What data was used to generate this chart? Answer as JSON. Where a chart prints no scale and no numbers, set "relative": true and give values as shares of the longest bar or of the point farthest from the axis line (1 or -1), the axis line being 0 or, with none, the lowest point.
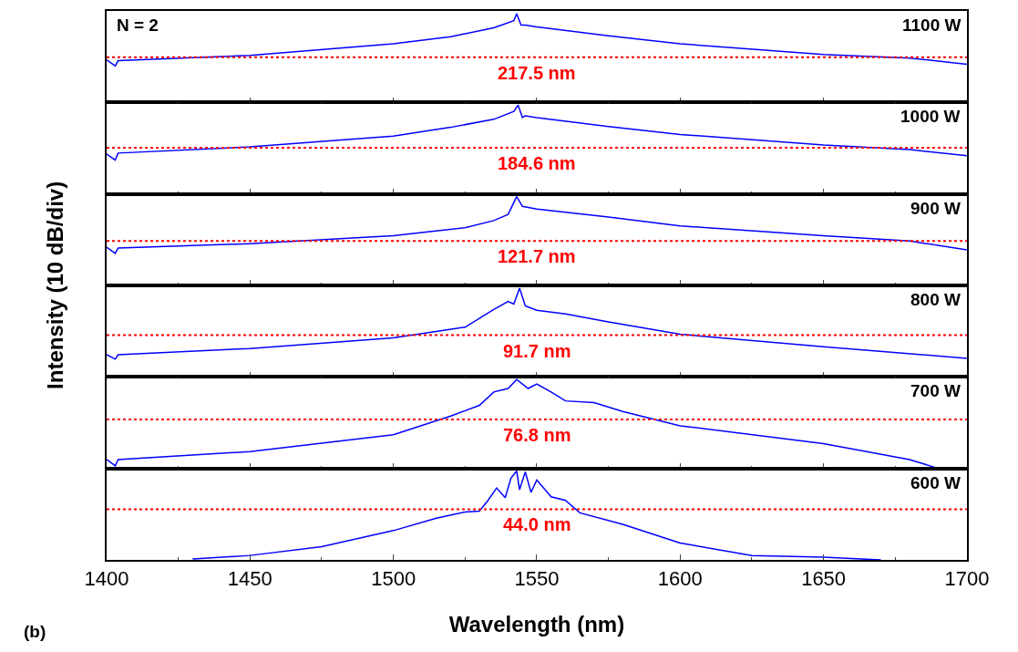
{
  "chart_data": [
    {
      "type": "line",
      "relative": true,
      "ylabel": "Intensity (10 dB/div)",
      "annotations": [
        "1100 W",
        "N = 2"
      ],
      "tick_labels": false,
      "xlim": [
        1400,
        1700
      ],
      "xticks": [
        1400,
        1450,
        1500,
        1550,
        1600,
        1650,
        1700
      ],
      "x": [
        1400,
        1403,
        1404,
        1450,
        1500,
        1520,
        1535,
        1542,
        1543,
        1544.5,
        1546,
        1550,
        1575,
        1600,
        1650,
        1680,
        1700
      ],
      "series": [
        {
          "color": "#0000ff",
          "values": [
            0.48,
            0.41,
            0.47,
            0.53,
            0.66,
            0.74,
            0.84,
            0.92,
            1.0,
            0.87,
            0.87,
            0.85,
            0.75,
            0.66,
            0.54,
            0.5,
            0.43
          ]
        }
      ],
      "ref_lines": [
        {
          "axis": "y",
          "value": 0.51,
          "label": "217.5 nm",
          "color": "#ff0000",
          "line_style": "dotted"
        }
      ]
    },
    {
      "type": "line",
      "relative": true,
      "annotations": [
        "1000 W"
      ],
      "tick_labels": false,
      "xlim": [
        1400,
        1700
      ],
      "xticks": [
        1400,
        1450,
        1500,
        1550,
        1600,
        1650,
        1700
      ],
      "x": [
        1400,
        1403,
        1404,
        1450,
        1500,
        1520,
        1535,
        1542,
        1543.5,
        1545,
        1546,
        1550,
        1575,
        1600,
        1650,
        1680,
        1700
      ],
      "series": [
        {
          "color": "#0000ff",
          "values": [
            0.45,
            0.38,
            0.46,
            0.53,
            0.65,
            0.75,
            0.84,
            0.93,
            1.0,
            0.86,
            0.88,
            0.86,
            0.76,
            0.67,
            0.55,
            0.5,
            0.43
          ]
        }
      ],
      "ref_lines": [
        {
          "axis": "y",
          "value": 0.52,
          "label": "184.6 nm",
          "color": "#ff0000",
          "line_style": "dotted"
        }
      ]
    },
    {
      "type": "line",
      "relative": true,
      "annotations": [
        "900 W"
      ],
      "tick_labels": false,
      "xlim": [
        1400,
        1700
      ],
      "xticks": [
        1400,
        1450,
        1500,
        1550,
        1600,
        1650,
        1700
      ],
      "x": [
        1400,
        1403,
        1404,
        1450,
        1500,
        1525,
        1535,
        1540,
        1543,
        1545,
        1550,
        1575,
        1600,
        1650,
        1680,
        1700
      ],
      "series": [
        {
          "color": "#0000ff",
          "values": [
            0.43,
            0.36,
            0.42,
            0.47,
            0.56,
            0.65,
            0.73,
            0.8,
            1.0,
            0.89,
            0.86,
            0.77,
            0.67,
            0.56,
            0.5,
            0.4
          ]
        }
      ],
      "ref_lines": [
        {
          "axis": "y",
          "value": 0.5,
          "label": "121.7 nm",
          "color": "#ff0000",
          "line_style": "dotted"
        }
      ]
    },
    {
      "type": "line",
      "relative": true,
      "annotations": [
        "800 W"
      ],
      "tick_labels": false,
      "xlim": [
        1400,
        1700
      ],
      "xticks": [
        1400,
        1450,
        1500,
        1550,
        1600,
        1650,
        1700
      ],
      "x": [
        1400,
        1403,
        1404,
        1450,
        1500,
        1525,
        1535,
        1540,
        1542,
        1544,
        1546,
        1550,
        1560,
        1575,
        1600,
        1650,
        1700
      ],
      "series": [
        {
          "color": "#0000ff",
          "values": [
            0.25,
            0.2,
            0.25,
            0.32,
            0.44,
            0.56,
            0.76,
            0.85,
            0.82,
            1.0,
            0.8,
            0.75,
            0.71,
            0.62,
            0.48,
            0.34,
            0.21
          ]
        }
      ],
      "ref_lines": [
        {
          "axis": "y",
          "value": 0.47,
          "label": "91.7 nm",
          "color": "#ff0000",
          "line_style": "dotted"
        }
      ]
    },
    {
      "type": "line",
      "relative": true,
      "annotations": [
        "700 W"
      ],
      "tick_labels": false,
      "xlim": [
        1400,
        1700
      ],
      "xticks": [
        1400,
        1450,
        1500,
        1550,
        1600,
        1650,
        1700
      ],
      "x": [
        1400,
        1403,
        1404,
        1450,
        1500,
        1520,
        1530,
        1535,
        1540,
        1543,
        1547,
        1550,
        1555,
        1560,
        1570,
        1580,
        1600,
        1650,
        1680,
        1690
      ],
      "series": [
        {
          "color": "#0000ff",
          "values": [
            0.1,
            0.03,
            0.1,
            0.19,
            0.38,
            0.59,
            0.71,
            0.86,
            0.9,
            1.0,
            0.9,
            0.95,
            0.86,
            0.76,
            0.74,
            0.64,
            0.48,
            0.28,
            0.1,
            0.0
          ]
        }
      ],
      "ref_lines": [
        {
          "axis": "y",
          "value": 0.55,
          "label": "76.8 nm",
          "color": "#ff0000",
          "line_style": "dotted"
        }
      ]
    },
    {
      "type": "line",
      "relative": true,
      "xlabel": "Wavelength (nm)",
      "annotations": [
        "600 W",
        "(b)"
      ],
      "tick_labels": "x",
      "xlim": [
        1400,
        1700
      ],
      "xticks": [
        1400,
        1450,
        1500,
        1550,
        1600,
        1650,
        1700
      ],
      "x": [
        1430,
        1450,
        1475,
        1500,
        1515,
        1525,
        1530,
        1533,
        1536,
        1539,
        1541,
        1543,
        1544,
        1546,
        1548,
        1550,
        1555,
        1560,
        1565,
        1580,
        1600,
        1625,
        1650,
        1670
      ],
      "series": [
        {
          "color": "#0000ff",
          "values": [
            0.01,
            0.05,
            0.15,
            0.33,
            0.47,
            0.54,
            0.55,
            0.67,
            0.81,
            0.7,
            0.92,
            1.0,
            0.79,
            0.99,
            0.76,
            0.9,
            0.71,
            0.67,
            0.53,
            0.4,
            0.19,
            0.05,
            0.03,
            0.0
          ]
        }
      ],
      "ref_lines": [
        {
          "axis": "y",
          "value": 0.57,
          "label": "44.0 nm",
          "color": "#ff0000",
          "line_style": "dotted"
        }
      ]
    }
  ]
}
